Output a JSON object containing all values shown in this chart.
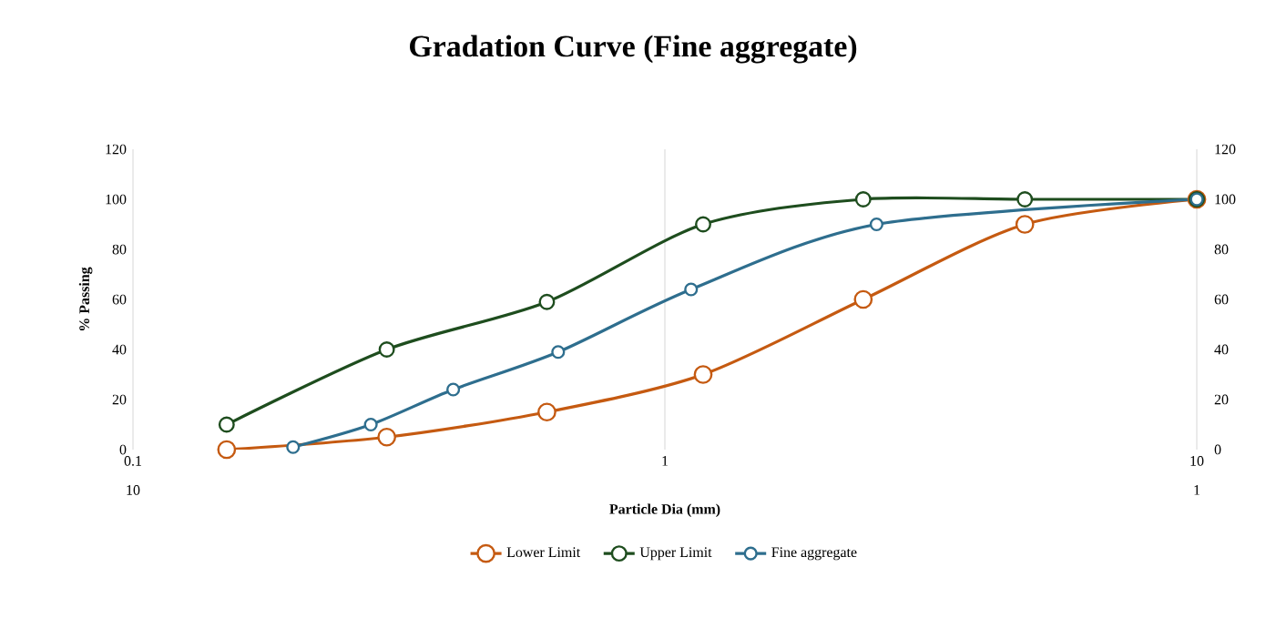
{
  "chart_data": {
    "type": "line",
    "title": "Gradation Curve (Fine aggregate)",
    "xlabel": "Particle Dia (mm)",
    "ylabel": "% Passing",
    "log": "x",
    "xlim": [
      0.1,
      10
    ],
    "xticks": [
      0.1,
      1,
      10
    ],
    "ylim": [
      0,
      120
    ],
    "yticks": [
      0,
      20,
      40,
      60,
      80,
      100,
      120
    ],
    "y2lim": [
      0,
      120
    ],
    "y2ticks": [
      0,
      20,
      40,
      60,
      80,
      100,
      120
    ],
    "x2lim": [
      10,
      1
    ],
    "x2ticks": [
      10,
      1
    ],
    "grid": "x",
    "legend": "bottom",
    "marker": "circle",
    "line_style": "solid",
    "series": [
      {
        "name": "Lower Limit",
        "color": "#c55a11",
        "x": [
          0.15,
          0.3,
          0.6,
          1.18,
          2.36,
          4.75,
          10
        ],
        "values": [
          0,
          5,
          15,
          30,
          60,
          90,
          100
        ]
      },
      {
        "name": "Upper Limit",
        "color": "#1e4d1e",
        "x": [
          0.15,
          0.3,
          0.6,
          1.18,
          2.36,
          4.75,
          10
        ],
        "values": [
          10,
          40,
          59,
          90,
          100,
          100,
          100
        ]
      },
      {
        "name": "Fine aggregate",
        "color": "#2e6e8e",
        "x": [
          0.2,
          0.28,
          0.4,
          0.63,
          1.12,
          2.5,
          10
        ],
        "values": [
          1,
          10,
          24,
          39,
          64,
          90,
          100
        ]
      }
    ]
  }
}
